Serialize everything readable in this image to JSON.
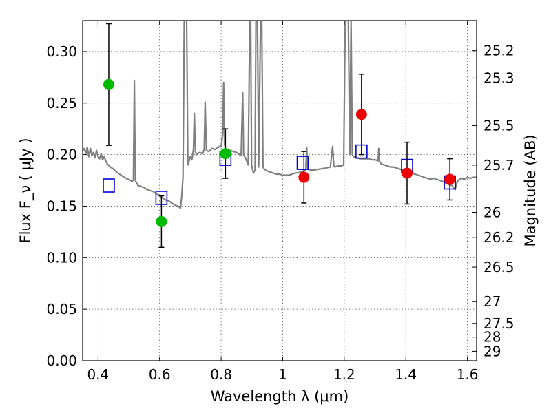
{
  "chart_data": {
    "type": "scatter",
    "xlabel": "Wavelength  λ (μm)",
    "ylabel": "Flux  F_ν  ( μJy )",
    "ylabel_right": "Magnitude (AB)",
    "xlim": [
      0.35,
      1.63
    ],
    "ylim": [
      0.0,
      0.33
    ],
    "grid": true,
    "x_ticks": [
      0.4,
      0.6,
      0.8,
      1.0,
      1.2,
      1.4,
      1.6
    ],
    "x_tick_labels": [
      "0.4",
      "0.6",
      "0.8",
      "1",
      "1.2",
      "1.4",
      "1.6"
    ],
    "y_ticks": [
      0.0,
      0.05,
      0.1,
      0.15,
      0.2,
      0.25,
      0.3
    ],
    "y_tick_labels": [
      "0.00",
      "0.05",
      "0.10",
      "0.15",
      "0.20",
      "0.25",
      "0.30"
    ],
    "right_ticks": [
      {
        "label": "25.2",
        "flux": 0.3008
      },
      {
        "label": "25.3",
        "flux": 0.2743
      },
      {
        "label": "25.5",
        "flux": 0.2282
      },
      {
        "label": "25.7",
        "flux": 0.1898
      },
      {
        "label": "26",
        "flux": 0.144
      },
      {
        "label": "26.2",
        "flux": 0.1197
      },
      {
        "label": "26.5",
        "flux": 0.0908
      },
      {
        "label": "27",
        "flux": 0.0573
      },
      {
        "label": "27.5",
        "flux": 0.0362
      },
      {
        "label": "28",
        "flux": 0.0229
      },
      {
        "label": "29",
        "flux": 0.0091
      }
    ],
    "series": [
      {
        "marker": "square",
        "color": "#0000dd",
        "points": [
          {
            "x": 0.435,
            "y": 0.17
          },
          {
            "x": 0.606,
            "y": 0.158
          },
          {
            "x": 0.814,
            "y": 0.196
          },
          {
            "x": 1.065,
            "y": 0.192
          },
          {
            "x": 1.256,
            "y": 0.203
          },
          {
            "x": 1.404,
            "y": 0.189
          },
          {
            "x": 1.543,
            "y": 0.173
          }
        ]
      },
      {
        "marker": "circle",
        "color": "#00bb00",
        "points": [
          {
            "x": 0.435,
            "y": 0.268,
            "err": 0.059
          },
          {
            "x": 0.606,
            "y": 0.135,
            "err": 0.025
          },
          {
            "x": 0.814,
            "y": 0.201,
            "err": 0.024
          }
        ]
      },
      {
        "marker": "circle",
        "color": "#ee0000",
        "points": [
          {
            "x": 1.069,
            "y": 0.178,
            "err": 0.025
          },
          {
            "x": 1.256,
            "y": 0.239,
            "err": 0.039
          },
          {
            "x": 1.404,
            "y": 0.182,
            "err": 0.03
          },
          {
            "x": 1.543,
            "y": 0.176,
            "err": 0.02
          }
        ]
      },
      {
        "type": "line",
        "color": "#808080",
        "points": [
          [
            0.35,
            0.204
          ],
          [
            0.355,
            0.206
          ],
          [
            0.36,
            0.201
          ],
          [
            0.365,
            0.207
          ],
          [
            0.37,
            0.198
          ],
          [
            0.375,
            0.206
          ],
          [
            0.38,
            0.199
          ],
          [
            0.385,
            0.202
          ],
          [
            0.39,
            0.197
          ],
          [
            0.395,
            0.204
          ],
          [
            0.4,
            0.198
          ],
          [
            0.405,
            0.196
          ],
          [
            0.41,
            0.201
          ],
          [
            0.415,
            0.195
          ],
          [
            0.42,
            0.198
          ],
          [
            0.425,
            0.194
          ],
          [
            0.43,
            0.191
          ],
          [
            0.44,
            0.188
          ],
          [
            0.45,
            0.186
          ],
          [
            0.46,
            0.183
          ],
          [
            0.47,
            0.181
          ],
          [
            0.48,
            0.179
          ],
          [
            0.49,
            0.177
          ],
          [
            0.5,
            0.176
          ],
          [
            0.51,
            0.174
          ],
          [
            0.515,
            0.175
          ],
          [
            0.518,
            0.272
          ],
          [
            0.521,
            0.175
          ],
          [
            0.53,
            0.17
          ],
          [
            0.54,
            0.169
          ],
          [
            0.55,
            0.168
          ],
          [
            0.56,
            0.166
          ],
          [
            0.57,
            0.165
          ],
          [
            0.58,
            0.164
          ],
          [
            0.59,
            0.162
          ],
          [
            0.6,
            0.16
          ],
          [
            0.61,
            0.158
          ],
          [
            0.62,
            0.156
          ],
          [
            0.63,
            0.155
          ],
          [
            0.64,
            0.153
          ],
          [
            0.65,
            0.151
          ],
          [
            0.66,
            0.15
          ],
          [
            0.668,
            0.148
          ],
          [
            0.672,
            0.16
          ],
          [
            0.676,
            0.178
          ],
          [
            0.68,
            0.33
          ],
          [
            0.688,
            0.33
          ],
          [
            0.692,
            0.19
          ],
          [
            0.7,
            0.198
          ],
          [
            0.705,
            0.195
          ],
          [
            0.71,
            0.205
          ],
          [
            0.713,
            0.24
          ],
          [
            0.716,
            0.203
          ],
          [
            0.72,
            0.2
          ],
          [
            0.73,
            0.202
          ],
          [
            0.74,
            0.201
          ],
          [
            0.745,
            0.205
          ],
          [
            0.748,
            0.251
          ],
          [
            0.752,
            0.204
          ],
          [
            0.76,
            0.203
          ],
          [
            0.77,
            0.206
          ],
          [
            0.78,
            0.205
          ],
          [
            0.79,
            0.207
          ],
          [
            0.795,
            0.208
          ],
          [
            0.8,
            0.208
          ],
          [
            0.805,
            0.22
          ],
          [
            0.808,
            0.27
          ],
          [
            0.811,
            0.21
          ],
          [
            0.815,
            0.205
          ],
          [
            0.82,
            0.205
          ],
          [
            0.83,
            0.204
          ],
          [
            0.84,
            0.203
          ],
          [
            0.85,
            0.202
          ],
          [
            0.86,
            0.2
          ],
          [
            0.865,
            0.199
          ],
          [
            0.87,
            0.26
          ],
          [
            0.873,
            0.2
          ],
          [
            0.88,
            0.196
          ],
          [
            0.888,
            0.19
          ],
          [
            0.893,
            0.33
          ],
          [
            0.896,
            0.33
          ],
          [
            0.899,
            0.19
          ],
          [
            0.905,
            0.182
          ],
          [
            0.91,
            0.185
          ],
          [
            0.913,
            0.33
          ],
          [
            0.918,
            0.33
          ],
          [
            0.922,
            0.188
          ],
          [
            0.928,
            0.33
          ],
          [
            0.932,
            0.33
          ],
          [
            0.936,
            0.188
          ],
          [
            0.94,
            0.186
          ],
          [
            0.95,
            0.184
          ],
          [
            0.96,
            0.183
          ],
          [
            0.97,
            0.182
          ],
          [
            0.98,
            0.181
          ],
          [
            0.99,
            0.181
          ],
          [
            1.0,
            0.18
          ],
          [
            1.02,
            0.18
          ],
          [
            1.04,
            0.182
          ],
          [
            1.06,
            0.183
          ],
          [
            1.075,
            0.185
          ],
          [
            1.078,
            0.207
          ],
          [
            1.081,
            0.186
          ],
          [
            1.09,
            0.185
          ],
          [
            1.1,
            0.185
          ],
          [
            1.12,
            0.186
          ],
          [
            1.14,
            0.187
          ],
          [
            1.155,
            0.188
          ],
          [
            1.162,
            0.208
          ],
          [
            1.166,
            0.189
          ],
          [
            1.17,
            0.188
          ],
          [
            1.18,
            0.189
          ],
          [
            1.19,
            0.189
          ],
          [
            1.198,
            0.19
          ],
          [
            1.203,
            0.33
          ],
          [
            1.213,
            0.33
          ],
          [
            1.218,
            0.2
          ],
          [
            1.222,
            0.33
          ],
          [
            1.226,
            0.2
          ],
          [
            1.23,
            0.198
          ],
          [
            1.24,
            0.197
          ],
          [
            1.25,
            0.196
          ],
          [
            1.26,
            0.196
          ],
          [
            1.27,
            0.196
          ],
          [
            1.28,
            0.196
          ],
          [
            1.29,
            0.195
          ],
          [
            1.3,
            0.195
          ],
          [
            1.31,
            0.194
          ],
          [
            1.312,
            0.206
          ],
          [
            1.315,
            0.193
          ],
          [
            1.32,
            0.191
          ],
          [
            1.33,
            0.19
          ],
          [
            1.34,
            0.189
          ],
          [
            1.35,
            0.188
          ],
          [
            1.36,
            0.188
          ],
          [
            1.37,
            0.187
          ],
          [
            1.38,
            0.186
          ],
          [
            1.39,
            0.185
          ],
          [
            1.4,
            0.184
          ],
          [
            1.41,
            0.183
          ],
          [
            1.42,
            0.182
          ],
          [
            1.43,
            0.181
          ],
          [
            1.44,
            0.18
          ],
          [
            1.45,
            0.179
          ],
          [
            1.46,
            0.178
          ],
          [
            1.47,
            0.177
          ],
          [
            1.48,
            0.176
          ],
          [
            1.49,
            0.177
          ],
          [
            1.5,
            0.176
          ],
          [
            1.51,
            0.175
          ],
          [
            1.52,
            0.174
          ],
          [
            1.53,
            0.172
          ],
          [
            1.54,
            0.171
          ],
          [
            1.55,
            0.17
          ],
          [
            1.56,
            0.166
          ],
          [
            1.565,
            0.172
          ],
          [
            1.57,
            0.175
          ],
          [
            1.58,
            0.177
          ],
          [
            1.59,
            0.176
          ],
          [
            1.6,
            0.178
          ],
          [
            1.61,
            0.177
          ],
          [
            1.62,
            0.178
          ],
          [
            1.63,
            0.178
          ]
        ]
      }
    ]
  }
}
